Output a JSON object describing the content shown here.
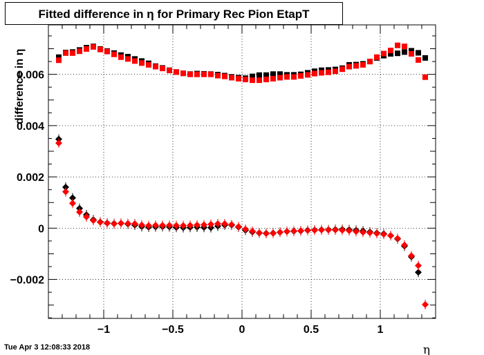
{
  "page": {
    "title": "Fitted difference in  η for Primary Rec Pion EtapT",
    "timestamp": "Tue Apr  3 12:08:33 2018"
  },
  "chart_data": {
    "type": "scatter",
    "title": "Fitted difference in  η for Primary Rec Pion EtapT",
    "xlabel": "η",
    "ylabel": "difference in  η",
    "xlim": [
      -1.4,
      1.4
    ],
    "ylim": [
      -0.00352,
      0.00793
    ],
    "grid": true,
    "x_ticks": [
      -1,
      -0.5,
      0,
      0.5,
      1
    ],
    "x_tick_labels": [
      "−1",
      "−0.5",
      "0",
      "0.5",
      "1"
    ],
    "y_ticks": [
      -0.002,
      0,
      0.002,
      0.004,
      0.006
    ],
    "y_tick_labels": [
      "−0.002",
      "0",
      "0.002",
      "0.004",
      "0.006"
    ],
    "colors": {
      "black": "#000000",
      "red": "#ff0000"
    },
    "series": [
      {
        "color": "black",
        "marker": "square",
        "x": [
          -1.325,
          -1.275,
          -1.225,
          -1.175,
          -1.125,
          -1.075,
          -1.025,
          -0.975,
          -0.925,
          -0.875,
          -0.825,
          -0.775,
          -0.725,
          -0.675,
          -0.625,
          -0.575,
          -0.525,
          -0.475,
          -0.425,
          -0.375,
          -0.325,
          -0.275,
          -0.225,
          -0.175,
          -0.125,
          -0.075,
          -0.025,
          0.025,
          0.075,
          0.125,
          0.175,
          0.225,
          0.275,
          0.325,
          0.375,
          0.425,
          0.475,
          0.525,
          0.575,
          0.625,
          0.675,
          0.725,
          0.775,
          0.825,
          0.875,
          0.925,
          0.975,
          1.025,
          1.075,
          1.125,
          1.175,
          1.225,
          1.275,
          1.325
        ],
        "y": [
          0.00667,
          0.00685,
          0.00687,
          0.00695,
          0.00704,
          0.00709,
          0.00699,
          0.00691,
          0.00683,
          0.00675,
          0.00669,
          0.0066,
          0.00652,
          0.00643,
          0.00632,
          0.00625,
          0.00616,
          0.00609,
          0.00604,
          0.00601,
          0.00603,
          0.00602,
          0.00601,
          0.00599,
          0.00595,
          0.0059,
          0.00587,
          0.00585,
          0.00592,
          0.00597,
          0.00597,
          0.00601,
          0.00601,
          0.00598,
          0.00598,
          0.006,
          0.00606,
          0.00612,
          0.00616,
          0.00617,
          0.00619,
          0.00624,
          0.00637,
          0.00638,
          0.00641,
          0.0065,
          0.00664,
          0.00673,
          0.0068,
          0.00682,
          0.00687,
          0.00692,
          0.00684,
          0.00664
        ]
      },
      {
        "color": "red",
        "marker": "square",
        "x": [
          -1.325,
          -1.275,
          -1.225,
          -1.175,
          -1.125,
          -1.075,
          -1.025,
          -0.975,
          -0.925,
          -0.875,
          -0.825,
          -0.775,
          -0.725,
          -0.675,
          -0.625,
          -0.575,
          -0.525,
          -0.475,
          -0.425,
          -0.375,
          -0.325,
          -0.275,
          -0.225,
          -0.175,
          -0.125,
          -0.075,
          -0.025,
          0.025,
          0.075,
          0.125,
          0.175,
          0.225,
          0.275,
          0.325,
          0.375,
          0.425,
          0.475,
          0.525,
          0.575,
          0.625,
          0.675,
          0.725,
          0.775,
          0.825,
          0.875,
          0.925,
          0.975,
          1.025,
          1.075,
          1.125,
          1.175,
          1.225,
          1.275,
          1.325
        ],
        "y": [
          0.00655,
          0.00683,
          0.00683,
          0.0069,
          0.00699,
          0.00707,
          0.00697,
          0.00689,
          0.00678,
          0.00667,
          0.0066,
          0.00652,
          0.00644,
          0.00637,
          0.0063,
          0.00623,
          0.00615,
          0.00609,
          0.00604,
          0.006,
          0.006,
          0.006,
          0.006,
          0.00595,
          0.00592,
          0.00587,
          0.00583,
          0.0058,
          0.00577,
          0.00577,
          0.0058,
          0.00583,
          0.00587,
          0.0059,
          0.0059,
          0.00594,
          0.00598,
          0.00603,
          0.00606,
          0.00608,
          0.00612,
          0.0062,
          0.0063,
          0.00633,
          0.00637,
          0.0065,
          0.00667,
          0.00681,
          0.00693,
          0.00713,
          0.00709,
          0.0068,
          0.00656,
          0.00589
        ]
      },
      {
        "color": "black",
        "marker": "diamond",
        "x": [
          -1.325,
          -1.275,
          -1.225,
          -1.175,
          -1.125,
          -1.075,
          -1.025,
          -0.975,
          -0.925,
          -0.875,
          -0.825,
          -0.775,
          -0.725,
          -0.675,
          -0.625,
          -0.575,
          -0.525,
          -0.475,
          -0.425,
          -0.375,
          -0.325,
          -0.275,
          -0.225,
          -0.175,
          -0.125,
          -0.075,
          -0.025,
          0.025,
          0.075,
          0.125,
          0.175,
          0.225,
          0.275,
          0.325,
          0.375,
          0.425,
          0.475,
          0.525,
          0.575,
          0.625,
          0.675,
          0.725,
          0.775,
          0.825,
          0.875,
          0.925,
          0.975,
          1.025,
          1.075,
          1.125,
          1.175,
          1.225,
          1.275,
          1.325
        ],
        "y": [
          0.00347,
          0.0016,
          0.00118,
          0.00077,
          0.00052,
          0.00033,
          0.00024,
          0.0002,
          0.00018,
          0.00019,
          0.00016,
          0.00012,
          6e-05,
          4e-05,
          5e-05,
          6e-05,
          5e-05,
          3e-05,
          2e-05,
          3e-05,
          4e-05,
          3e-05,
          2e-05,
          8e-05,
          0.00012,
          0.00012,
          4e-05,
          -8e-05,
          -0.00015,
          -0.00019,
          -0.0002,
          -0.00019,
          -0.00016,
          -0.00013,
          -0.00012,
          -0.00011,
          -8e-05,
          -7e-05,
          -6e-05,
          -6e-05,
          -5e-05,
          -5e-05,
          -6e-05,
          -8e-05,
          -0.00011,
          -0.00015,
          -0.00019,
          -0.00022,
          -0.00029,
          -0.00042,
          -0.0007,
          -0.00112,
          -0.00172,
          null
        ]
      },
      {
        "color": "red",
        "marker": "diamond",
        "x": [
          -1.325,
          -1.275,
          -1.225,
          -1.175,
          -1.125,
          -1.075,
          -1.025,
          -0.975,
          -0.925,
          -0.875,
          -0.825,
          -0.775,
          -0.725,
          -0.675,
          -0.625,
          -0.575,
          -0.525,
          -0.475,
          -0.425,
          -0.375,
          -0.325,
          -0.275,
          -0.225,
          -0.175,
          -0.125,
          -0.075,
          -0.025,
          0.025,
          0.075,
          0.125,
          0.175,
          0.225,
          0.275,
          0.325,
          0.375,
          0.425,
          0.475,
          0.525,
          0.575,
          0.625,
          0.675,
          0.725,
          0.775,
          0.825,
          0.875,
          0.925,
          0.975,
          1.025,
          1.075,
          1.125,
          1.175,
          1.225,
          1.275,
          1.325
        ],
        "y": [
          0.00332,
          0.00142,
          0.00097,
          0.00063,
          0.00044,
          0.0003,
          0.00023,
          0.00019,
          0.00017,
          0.00019,
          0.00018,
          0.00017,
          0.00012,
          0.0001,
          0.00011,
          0.00011,
          0.00011,
          0.0001,
          0.0001,
          0.00011,
          0.00012,
          0.00013,
          0.00015,
          0.00017,
          0.00017,
          0.00014,
          6e-05,
          -4e-05,
          -0.00012,
          -0.00018,
          -0.00021,
          -0.0002,
          -0.00016,
          -0.00013,
          -0.00011,
          -0.0001,
          -9e-05,
          -8e-05,
          -7e-05,
          -7e-05,
          -7e-05,
          -8e-05,
          -0.0001,
          -0.00013,
          -0.00016,
          -0.00018,
          -0.00021,
          -0.00024,
          -0.00029,
          -0.0004,
          -0.00066,
          -0.00108,
          -0.00146,
          -0.00298
        ]
      }
    ]
  }
}
